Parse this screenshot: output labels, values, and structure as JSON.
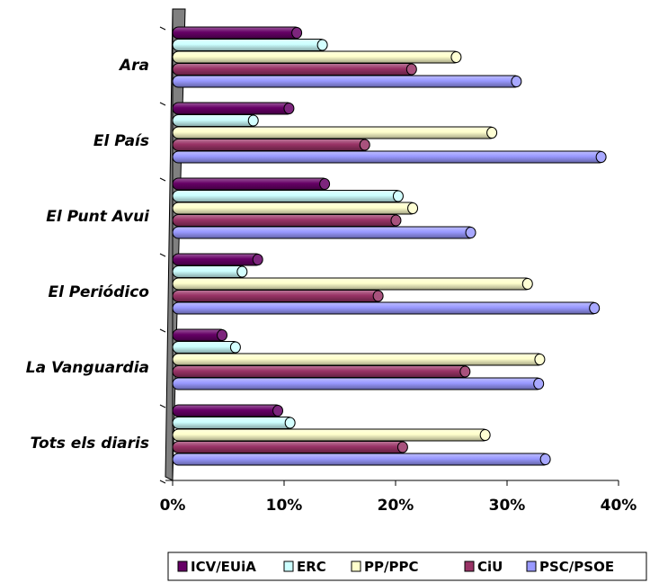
{
  "chart_data": {
    "type": "bar",
    "orientation": "horizontal",
    "style": "3d-cylinder",
    "categories": [
      "Ara",
      "El País",
      "El Punt Avui",
      "El Periódico",
      "La Vanguardia",
      "Tots els diaris"
    ],
    "series": [
      {
        "name": "ICV/EUiA",
        "color": "#660066",
        "values": [
          11.5,
          10.8,
          14.0,
          8.0,
          4.8,
          9.8
        ]
      },
      {
        "name": "ERC",
        "color": "#CCFFFF",
        "values": [
          13.8,
          7.6,
          20.6,
          6.6,
          6.0,
          10.9
        ]
      },
      {
        "name": "PP/PPC",
        "color": "#FFFFCC",
        "values": [
          25.8,
          29.0,
          21.9,
          32.2,
          33.3,
          28.4
        ]
      },
      {
        "name": "CiU",
        "color": "#993366",
        "values": [
          21.8,
          17.6,
          20.4,
          18.8,
          26.6,
          21.0
        ]
      },
      {
        "name": "PSC/PSOE",
        "color": "#9999FF",
        "values": [
          31.2,
          38.8,
          27.1,
          38.2,
          33.2,
          33.8
        ]
      }
    ],
    "x_ticks": [
      "0%",
      "10%",
      "20%",
      "30%",
      "40%"
    ],
    "xlim": [
      0,
      40
    ],
    "legend_position": "bottom-right"
  }
}
